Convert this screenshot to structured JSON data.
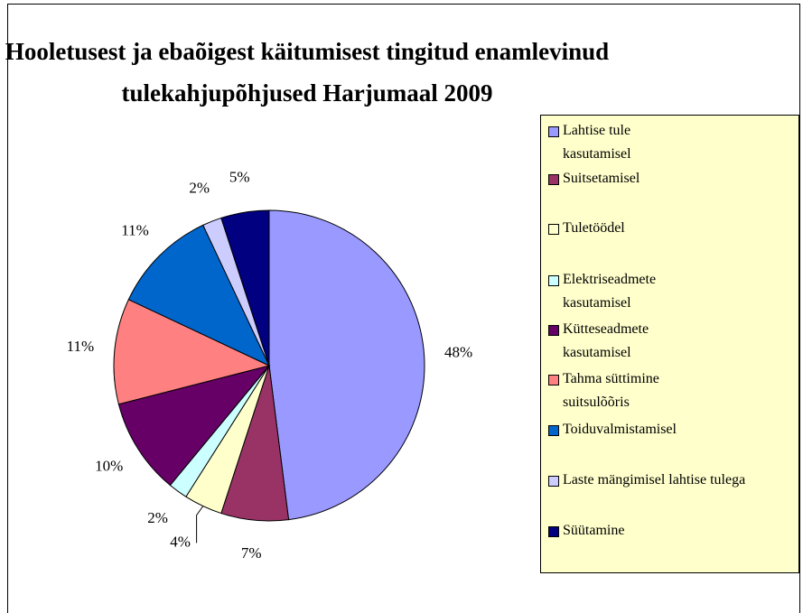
{
  "chart_data": {
    "type": "pie",
    "title": "Hooletusest ja ebaõigest käitumisest tingitud enamlevinud tulekahjupõhjused Harjumaal 2009",
    "categories": [
      "Lahtise tule kasutamisel",
      "Suitsetamisel",
      "Tuletöödel",
      "Elektriseadmete kasutamisel",
      "Kütteseadmete kasutamisel",
      "Tahma süttimine suitsulõõris",
      "Toiduvalmistamisel",
      "Laste mängimisel lahtise tulega",
      "Süütamine"
    ],
    "values": [
      48,
      7,
      4,
      2,
      10,
      11,
      11,
      2,
      5
    ],
    "value_labels": [
      "48%",
      "7%",
      "4%",
      "2%",
      "10%",
      "11%",
      "11%",
      "2%",
      "5%"
    ],
    "colors": [
      "#9999ff",
      "#993366",
      "#ffffcc",
      "#ccffff",
      "#660066",
      "#ff8080",
      "#0066cc",
      "#ccccff",
      "#000080"
    ],
    "legend": "right"
  }
}
